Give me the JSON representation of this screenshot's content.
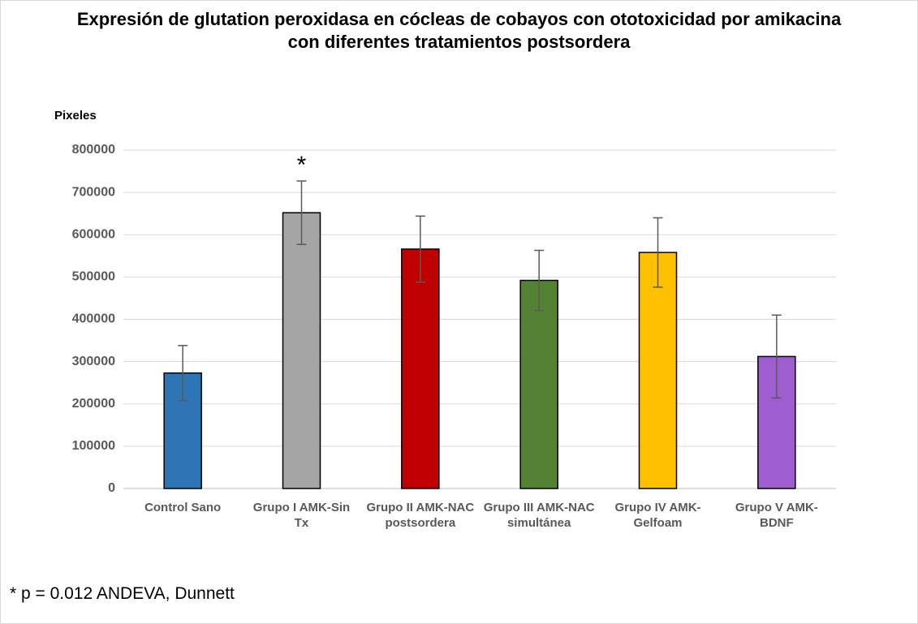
{
  "chart_data": {
    "type": "bar",
    "title": "Expresión de glutation peroxidasa en cócleas de cobayos con ototoxicidad por amikacina con diferentes tratamientos postsordera",
    "y_label": "Pixeles",
    "categories": [
      "Control Sano",
      "Grupo I AMK-Sin Tx",
      "Grupo II AMK-NAC postsordera",
      "Grupo III AMK-NAC simultánea",
      "Grupo IV AMK-Gelfoam",
      "Grupo V AMK-BDNF"
    ],
    "values": [
      273000,
      652000,
      566000,
      492000,
      558000,
      312000
    ],
    "errors": [
      65000,
      75000,
      78000,
      71000,
      82000,
      98000
    ],
    "colors": [
      "#2e75b6",
      "#a5a5a5",
      "#c00000",
      "#548235",
      "#ffc000",
      "#9e5ecf"
    ],
    "ylim": [
      0,
      800000
    ],
    "yticks": [
      0,
      100000,
      200000,
      300000,
      400000,
      500000,
      600000,
      700000,
      800000
    ],
    "grid": true,
    "annotation": {
      "text": "*",
      "category": "Grupo I AMK-Sin Tx"
    },
    "note": "* p = 0.012 ANDEVA, Dunnett"
  }
}
